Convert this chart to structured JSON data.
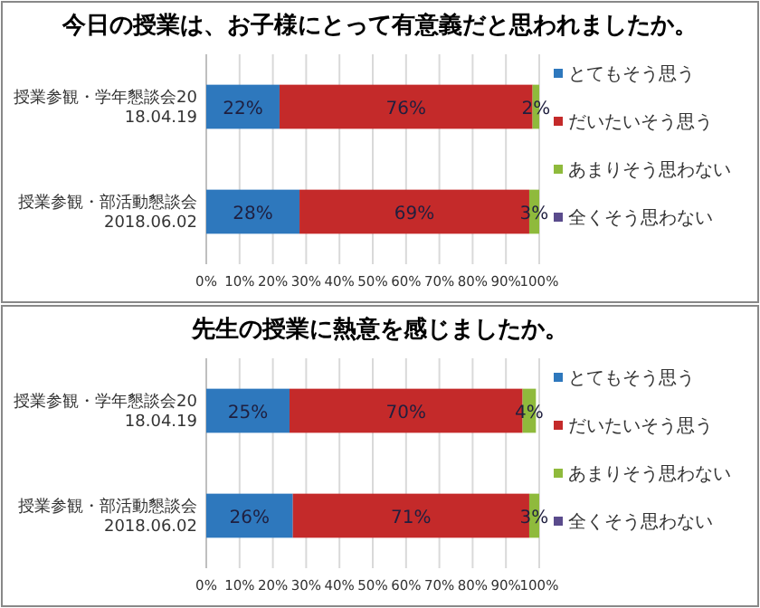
{
  "chart_data": [
    {
      "type": "bar",
      "orientation": "horizontal",
      "stacked": true,
      "title": "今日の授業は、お子様にとって有意義だと思われましたか。",
      "categories": [
        "授業参観・学年懇談会2018.04.19",
        "授業参観・部活動懇談会2018.06.02"
      ],
      "series": [
        {
          "name": "とてもそう思う",
          "color": "#2e78bd",
          "values": [
            22,
            28
          ],
          "value_labels": [
            "22%",
            "28%"
          ]
        },
        {
          "name": "だいたいそう思う",
          "color": "#c42a2a",
          "values": [
            76,
            69
          ],
          "value_labels": [
            "76%",
            "69%"
          ]
        },
        {
          "name": "あまりそう思わない",
          "color": "#8fba3c",
          "values": [
            2,
            3
          ],
          "value_labels": [
            "2%",
            "3%"
          ]
        },
        {
          "name": "全くそう思わない",
          "color": "#5a4b8c",
          "values": [
            0,
            0
          ],
          "value_labels": [
            null,
            null
          ]
        }
      ],
      "xlim": [
        0,
        100
      ],
      "xticks": [
        {
          "value": 0,
          "label": "0%"
        },
        {
          "value": 10,
          "label": "10%"
        },
        {
          "value": 20,
          "label": "20%"
        },
        {
          "value": 30,
          "label": "30%"
        },
        {
          "value": 40,
          "label": "40%"
        },
        {
          "value": 50,
          "label": "50%"
        },
        {
          "value": 60,
          "label": "60%"
        },
        {
          "value": 70,
          "label": "70%"
        },
        {
          "value": 80,
          "label": "80%"
        },
        {
          "value": 90,
          "label": "90%"
        },
        {
          "value": 100,
          "label": "100%"
        }
      ],
      "grid": "x",
      "legend": "right"
    },
    {
      "type": "bar",
      "orientation": "horizontal",
      "stacked": true,
      "title": "先生の授業に熱意を感じましたか。",
      "categories": [
        "授業参観・学年懇談会2018.04.19",
        "授業参観・部活動懇談会2018.06.02"
      ],
      "series": [
        {
          "name": "とてもそう思う",
          "color": "#2e78bd",
          "values": [
            25,
            26
          ],
          "value_labels": [
            "25%",
            "26%"
          ]
        },
        {
          "name": "だいたいそう思う",
          "color": "#c42a2a",
          "values": [
            70,
            71
          ],
          "value_labels": [
            "70%",
            "71%"
          ]
        },
        {
          "name": "あまりそう思わない",
          "color": "#8fba3c",
          "values": [
            4,
            3
          ],
          "value_labels": [
            "4%",
            "3%"
          ]
        },
        {
          "name": "全くそう思わない",
          "color": "#5a4b8c",
          "values": [
            0,
            0
          ],
          "value_labels": [
            null,
            null
          ]
        }
      ],
      "xlim": [
        0,
        100
      ],
      "xticks": [
        {
          "value": 0,
          "label": "0%"
        },
        {
          "value": 10,
          "label": "10%"
        },
        {
          "value": 20,
          "label": "20%"
        },
        {
          "value": 30,
          "label": "30%"
        },
        {
          "value": 40,
          "label": "40%"
        },
        {
          "value": 50,
          "label": "50%"
        },
        {
          "value": 60,
          "label": "60%"
        },
        {
          "value": 70,
          "label": "70%"
        },
        {
          "value": 80,
          "label": "80%"
        },
        {
          "value": 90,
          "label": "90%"
        },
        {
          "value": 100,
          "label": "100%"
        }
      ],
      "grid": "x",
      "legend": "right"
    }
  ]
}
